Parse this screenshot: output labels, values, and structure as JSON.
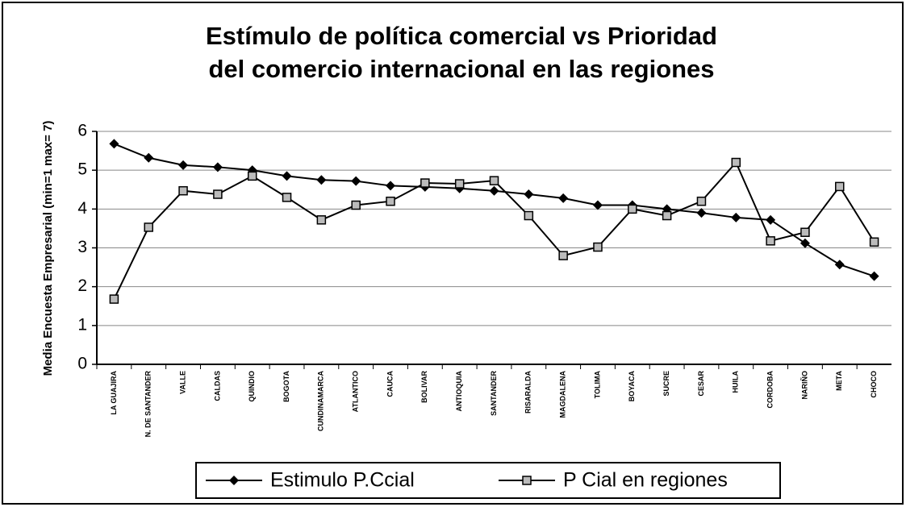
{
  "chart_data": {
    "type": "line",
    "title": [
      "Estímulo de política comercial vs Prioridad",
      "del comercio internacional en las regiones"
    ],
    "y_label": "Media Encuesta Empresarial (min=1 max= 7)",
    "categories": [
      "LA GUAJIRA",
      "N. DE SANTANDER",
      "VALLE",
      "CALDAS",
      "QUINDIO",
      "BOGOTA",
      "CUNDINAMARCA",
      "ATLANTICO",
      "CAUCA",
      "BOLIVAR",
      "ANTIOQUIA",
      "SANTANDER",
      "RISARALDA",
      "MAGDALENA",
      "TOLIMA",
      "BOYACA",
      "SUCRE",
      "CESAR",
      "HUILA",
      "CORDOBA",
      "NARIÑO",
      "META",
      "CHOCO"
    ],
    "series": [
      {
        "name": "Estimulo P.Ccial",
        "color": "#000000",
        "marker": "diamond",
        "values": [
          5.68,
          5.32,
          5.13,
          5.08,
          5.0,
          4.85,
          4.75,
          4.72,
          4.6,
          4.57,
          4.53,
          4.47,
          4.38,
          4.28,
          4.1,
          4.1,
          4.0,
          3.9,
          3.78,
          3.72,
          3.12,
          2.57,
          2.27
        ]
      },
      {
        "name": "P Cial en regiones",
        "color": "#000000",
        "marker": "square",
        "values": [
          1.68,
          3.53,
          4.47,
          4.38,
          4.85,
          4.3,
          3.72,
          4.1,
          4.2,
          4.67,
          4.65,
          4.73,
          3.83,
          2.8,
          3.02,
          4.0,
          3.83,
          4.2,
          5.2,
          3.18,
          3.4,
          4.58,
          3.15
        ]
      }
    ],
    "ylim": [
      0,
      6
    ],
    "yticks": [
      0,
      1,
      2,
      3,
      4,
      5,
      6
    ],
    "grid": true,
    "legend": "bottom"
  }
}
